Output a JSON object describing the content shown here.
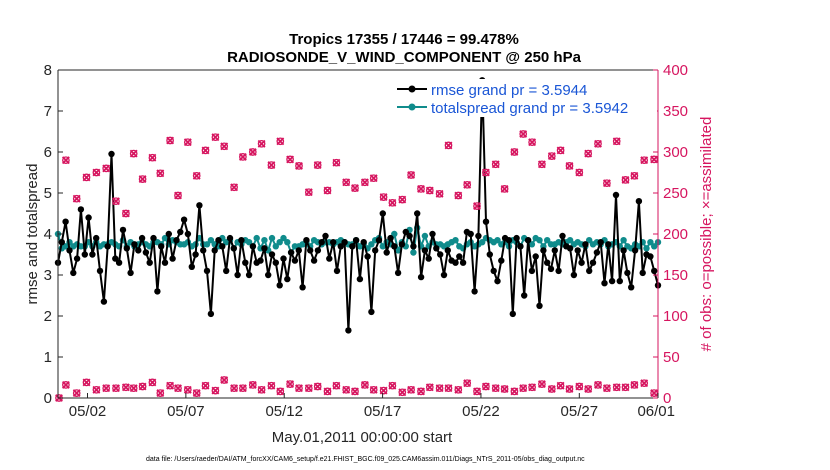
{
  "chart_data": {
    "type": "line",
    "title_line1": "Tropics 17355 / 17446 = 99.478%",
    "title_line2": "RADIOSONDE_V_WIND_COMPONENT @ 250 hPa",
    "xlabel": "May.01,2011 00:00:00 start",
    "ylabel_left": "rmse and totalspread",
    "ylabel_right": "# of obs: o=possible; ×=assimilated",
    "xlim": [
      0.5,
      31.0
    ],
    "ylim_left": [
      0,
      8
    ],
    "ylim_right": [
      0,
      400
    ],
    "x_ticks": [
      {
        "x": 2,
        "label": "05/02"
      },
      {
        "x": 7,
        "label": "05/07"
      },
      {
        "x": 12,
        "label": "05/12"
      },
      {
        "x": 17,
        "label": "05/17"
      },
      {
        "x": 22,
        "label": "05/22"
      },
      {
        "x": 27,
        "label": "05/27"
      },
      {
        "x": 32,
        "label": "06/01"
      }
    ],
    "y_ticks_left": [
      "0",
      "1",
      "2",
      "3",
      "4",
      "5",
      "6",
      "7",
      "8"
    ],
    "y_ticks_right": [
      "0",
      "50",
      "100",
      "150",
      "200",
      "250",
      "300",
      "350",
      "400"
    ],
    "series": [
      {
        "name": "rmse grand pr = 3.5944",
        "color": "#000000",
        "axis": "left",
        "values": [
          3.3,
          3.8,
          4.3,
          3.6,
          3.05,
          3.4,
          4.6,
          3.5,
          4.4,
          3.5,
          3.9,
          3.1,
          2.35,
          3.7,
          5.95,
          3.4,
          3.3,
          4.1,
          3.65,
          3.05,
          3.75,
          3.6,
          3.9,
          3.55,
          3.3,
          3.9,
          2.6,
          3.7,
          3.3,
          4.0,
          3.4,
          3.85,
          4.05,
          4.35,
          4.0,
          3.2,
          3.5,
          4.7,
          3.6,
          3.1,
          2.05,
          3.6,
          3.85,
          3.7,
          3.1,
          3.9,
          3.65,
          3.0,
          3.85,
          3.3,
          3.0,
          3.7,
          3.3,
          3.35,
          3.65,
          3.0,
          3.5,
          3.3,
          2.75,
          3.4,
          2.9,
          3.55,
          3.35,
          3.6,
          2.7,
          3.85,
          3.6,
          3.35,
          3.6,
          3.8,
          3.95,
          3.4,
          3.8,
          3.1,
          3.7,
          3.8,
          1.65,
          3.7,
          3.85,
          2.9,
          3.8,
          3.45,
          2.1,
          3.6,
          3.85,
          4.5,
          3.55,
          3.9,
          3.7,
          3.05,
          3.75,
          4.05,
          3.95,
          3.7,
          4.5,
          2.95,
          3.6,
          3.4,
          4.0,
          3.65,
          3.5,
          3.0,
          3.6,
          3.35,
          3.3,
          3.45,
          3.3,
          4.05,
          4.0,
          2.6,
          3.95,
          7.75,
          4.3,
          3.5,
          3.1,
          2.85,
          3.35,
          3.9,
          3.85,
          2.05,
          3.9,
          3.7,
          2.5,
          3.85,
          3.1,
          3.45,
          2.25,
          3.6,
          3.3,
          3.15,
          3.6,
          3.1,
          3.95,
          3.7,
          3.65,
          3.0,
          3.6,
          3.3,
          3.75,
          3.1,
          3.3,
          3.55,
          3.8,
          2.8,
          3.75,
          2.85,
          4.95,
          2.85,
          3.6,
          3.05,
          2.7,
          3.6,
          4.8,
          3.05,
          3.5,
          3.45,
          3.1,
          2.75
        ]
      },
      {
        "name": "totalspread grand pr = 3.5942",
        "color": "#108c8c",
        "axis": "left",
        "values": [
          4.0,
          3.65,
          3.7,
          3.8,
          3.7,
          3.75,
          3.7,
          3.7,
          3.8,
          3.7,
          3.8,
          3.7,
          3.75,
          3.75,
          3.8,
          3.75,
          3.7,
          3.85,
          3.7,
          3.8,
          3.7,
          3.75,
          3.8,
          3.75,
          3.7,
          3.8,
          3.8,
          3.75,
          3.9,
          3.75,
          3.85,
          3.8,
          3.75,
          3.75,
          3.8,
          3.7,
          3.75,
          3.9,
          3.75,
          3.75,
          3.85,
          3.75,
          3.7,
          3.9,
          3.8,
          3.85,
          3.65,
          3.8,
          3.75,
          3.85,
          3.8,
          3.7,
          3.9,
          3.65,
          3.85,
          3.6,
          3.9,
          3.7,
          3.8,
          3.9,
          3.8,
          3.55,
          3.7,
          3.7,
          3.75,
          3.8,
          3.7,
          3.85,
          3.8,
          3.75,
          3.8,
          3.8,
          3.75,
          3.8,
          3.85,
          3.8,
          3.75,
          3.75,
          3.85,
          3.7,
          3.75,
          3.65,
          3.75,
          3.85,
          3.9,
          3.7,
          3.8,
          3.75,
          4.0,
          3.6,
          3.8,
          3.7,
          4.1,
          3.55,
          4.15,
          3.7,
          3.95,
          3.7,
          3.8,
          3.75,
          3.75,
          3.7,
          3.75,
          3.8,
          3.85,
          3.7,
          3.65,
          3.75,
          3.8,
          3.7,
          3.75,
          3.8,
          3.9,
          3.85,
          3.8,
          3.85,
          3.75,
          3.8,
          3.7,
          3.85,
          3.8,
          3.7,
          3.9,
          3.85,
          3.75,
          3.9,
          3.85,
          3.7,
          3.85,
          3.75,
          3.75,
          3.8,
          3.75,
          3.8,
          3.85,
          3.75,
          3.8,
          3.75,
          3.7,
          3.85,
          3.75,
          3.8,
          3.75,
          3.85,
          3.7,
          3.75,
          3.8,
          3.7,
          3.85,
          3.7,
          3.65,
          3.75,
          3.7,
          3.8,
          3.65,
          3.8,
          3.7,
          3.8
        ]
      }
    ],
    "obs_possible": {
      "color": "#d6155f",
      "marker": "o",
      "axis": "right",
      "upper": [
        {
          "x": 0.9,
          "v": 290
        },
        {
          "x": 1.45,
          "v": 243
        },
        {
          "x": 1.95,
          "v": 269
        },
        {
          "x": 2.45,
          "v": 275
        },
        {
          "x": 2.95,
          "v": 280
        },
        {
          "x": 3.45,
          "v": 240
        },
        {
          "x": 3.95,
          "v": 225
        },
        {
          "x": 4.35,
          "v": 298
        },
        {
          "x": 4.8,
          "v": 267
        },
        {
          "x": 5.3,
          "v": 293
        },
        {
          "x": 5.7,
          "v": 274
        },
        {
          "x": 6.2,
          "v": 314
        },
        {
          "x": 6.6,
          "v": 247
        },
        {
          "x": 7.1,
          "v": 312
        },
        {
          "x": 7.55,
          "v": 271
        },
        {
          "x": 8.0,
          "v": 302
        },
        {
          "x": 8.5,
          "v": 318
        },
        {
          "x": 8.95,
          "v": 307
        },
        {
          "x": 9.45,
          "v": 257
        },
        {
          "x": 9.9,
          "v": 294
        },
        {
          "x": 10.4,
          "v": 300
        },
        {
          "x": 10.85,
          "v": 310
        },
        {
          "x": 11.35,
          "v": 284
        },
        {
          "x": 11.8,
          "v": 313
        },
        {
          "x": 12.3,
          "v": 291
        },
        {
          "x": 12.75,
          "v": 283
        },
        {
          "x": 13.25,
          "v": 251
        },
        {
          "x": 13.7,
          "v": 284
        },
        {
          "x": 14.2,
          "v": 253
        },
        {
          "x": 14.65,
          "v": 287
        },
        {
          "x": 15.15,
          "v": 263
        },
        {
          "x": 15.6,
          "v": 256
        },
        {
          "x": 16.1,
          "v": 263
        },
        {
          "x": 16.55,
          "v": 268
        },
        {
          "x": 17.05,
          "v": 245
        },
        {
          "x": 17.5,
          "v": 238
        },
        {
          "x": 18.0,
          "v": 242
        },
        {
          "x": 18.45,
          "v": 272
        },
        {
          "x": 18.95,
          "v": 255
        },
        {
          "x": 19.4,
          "v": 253
        },
        {
          "x": 19.9,
          "v": 249
        },
        {
          "x": 20.35,
          "v": 308
        },
        {
          "x": 20.85,
          "v": 247
        },
        {
          "x": 21.3,
          "v": 260
        },
        {
          "x": 21.8,
          "v": 234
        },
        {
          "x": 22.25,
          "v": 275
        },
        {
          "x": 22.75,
          "v": 285
        },
        {
          "x": 23.2,
          "v": 255
        },
        {
          "x": 23.7,
          "v": 300
        },
        {
          "x": 24.15,
          "v": 322
        },
        {
          "x": 24.6,
          "v": 312
        },
        {
          "x": 25.1,
          "v": 285
        },
        {
          "x": 25.6,
          "v": 295
        },
        {
          "x": 26.05,
          "v": 302
        },
        {
          "x": 26.5,
          "v": 283
        },
        {
          "x": 27.0,
          "v": 275
        },
        {
          "x": 27.45,
          "v": 298
        },
        {
          "x": 27.95,
          "v": 310
        },
        {
          "x": 28.4,
          "v": 262
        },
        {
          "x": 28.9,
          "v": 313
        },
        {
          "x": 29.35,
          "v": 266
        },
        {
          "x": 29.8,
          "v": 271
        },
        {
          "x": 30.3,
          "v": 290
        },
        {
          "x": 30.8,
          "v": 291
        }
      ],
      "lower": [
        {
          "x": 0.55,
          "v": 0
        },
        {
          "x": 0.9,
          "v": 16
        },
        {
          "x": 1.45,
          "v": 6
        },
        {
          "x": 1.95,
          "v": 19
        },
        {
          "x": 2.45,
          "v": 10
        },
        {
          "x": 2.95,
          "v": 12
        },
        {
          "x": 3.45,
          "v": 12
        },
        {
          "x": 3.95,
          "v": 13
        },
        {
          "x": 4.35,
          "v": 12
        },
        {
          "x": 4.8,
          "v": 14
        },
        {
          "x": 5.3,
          "v": 19
        },
        {
          "x": 5.7,
          "v": 6
        },
        {
          "x": 6.2,
          "v": 15
        },
        {
          "x": 6.6,
          "v": 12
        },
        {
          "x": 7.1,
          "v": 10
        },
        {
          "x": 7.55,
          "v": 6
        },
        {
          "x": 8.0,
          "v": 15
        },
        {
          "x": 8.5,
          "v": 9
        },
        {
          "x": 8.95,
          "v": 22
        },
        {
          "x": 9.45,
          "v": 12
        },
        {
          "x": 9.9,
          "v": 12
        },
        {
          "x": 10.4,
          "v": 16
        },
        {
          "x": 10.85,
          "v": 10
        },
        {
          "x": 11.35,
          "v": 15
        },
        {
          "x": 11.8,
          "v": 8
        },
        {
          "x": 12.3,
          "v": 17
        },
        {
          "x": 12.75,
          "v": 12
        },
        {
          "x": 13.25,
          "v": 12
        },
        {
          "x": 13.7,
          "v": 14
        },
        {
          "x": 14.2,
          "v": 8
        },
        {
          "x": 14.65,
          "v": 15
        },
        {
          "x": 15.15,
          "v": 10
        },
        {
          "x": 15.6,
          "v": 8
        },
        {
          "x": 16.1,
          "v": 16
        },
        {
          "x": 16.55,
          "v": 10
        },
        {
          "x": 17.05,
          "v": 9
        },
        {
          "x": 17.5,
          "v": 15
        },
        {
          "x": 18.0,
          "v": 7
        },
        {
          "x": 18.45,
          "v": 10
        },
        {
          "x": 18.95,
          "v": 8
        },
        {
          "x": 19.4,
          "v": 13
        },
        {
          "x": 19.9,
          "v": 12
        },
        {
          "x": 20.35,
          "v": 12
        },
        {
          "x": 20.85,
          "v": 10
        },
        {
          "x": 21.3,
          "v": 18
        },
        {
          "x": 21.8,
          "v": 8
        },
        {
          "x": 22.25,
          "v": 14
        },
        {
          "x": 22.75,
          "v": 12
        },
        {
          "x": 23.2,
          "v": 11
        },
        {
          "x": 23.7,
          "v": 8
        },
        {
          "x": 24.15,
          "v": 12
        },
        {
          "x": 24.6,
          "v": 13
        },
        {
          "x": 25.1,
          "v": 17
        },
        {
          "x": 25.6,
          "v": 11
        },
        {
          "x": 26.05,
          "v": 15
        },
        {
          "x": 26.5,
          "v": 11
        },
        {
          "x": 27.0,
          "v": 14
        },
        {
          "x": 27.45,
          "v": 11
        },
        {
          "x": 27.95,
          "v": 16
        },
        {
          "x": 28.4,
          "v": 12
        },
        {
          "x": 28.9,
          "v": 13
        },
        {
          "x": 29.35,
          "v": 13
        },
        {
          "x": 29.8,
          "v": 16
        },
        {
          "x": 30.3,
          "v": 18
        },
        {
          "x": 30.8,
          "v": 6
        }
      ]
    },
    "legend": {
      "position": "top-right"
    },
    "grid": false
  },
  "footnote": "data file: /Users/raeder/DAI/ATM_forcXX/CAM6_setup/f.e21.FHIST_BGC.f09_025.CAM6assim.011/Diags_NTrS_2011-05/obs_diag_output.nc",
  "colors": {
    "axis_left": "#262626",
    "axis_right": "#d6155f",
    "legend_text": "#1a56d6"
  }
}
